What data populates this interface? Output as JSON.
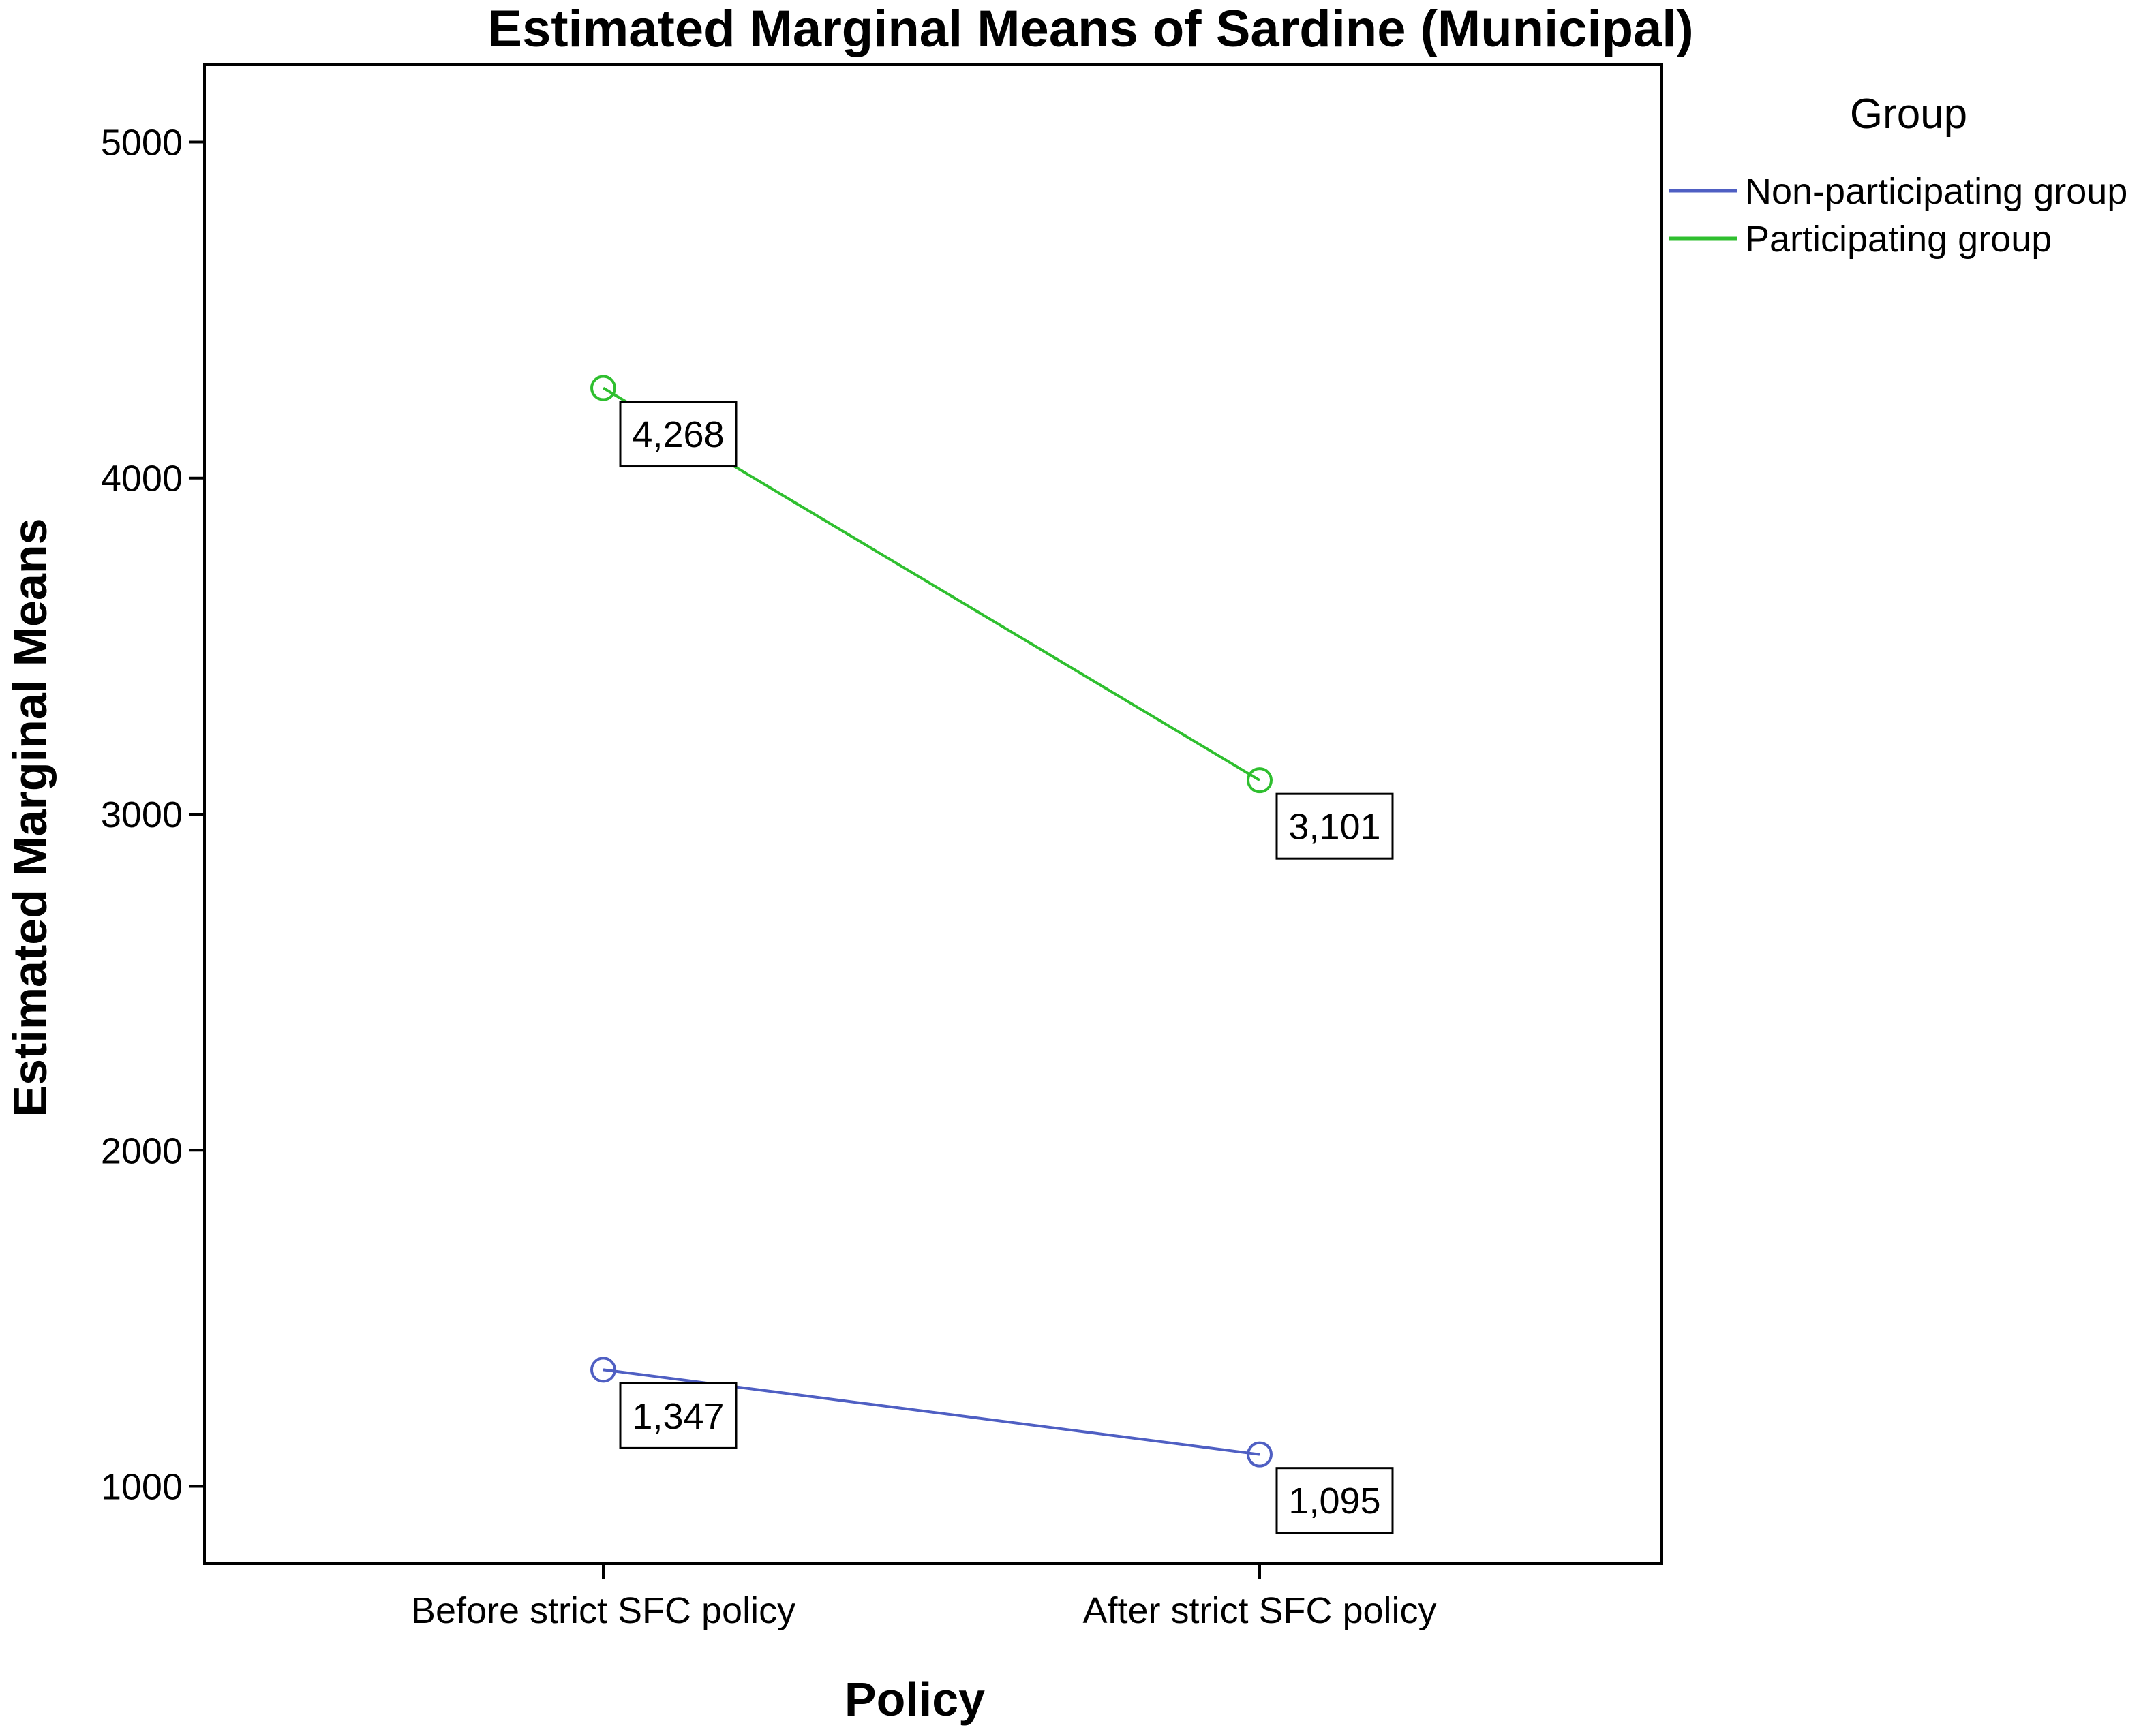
{
  "chart_data": {
    "type": "line",
    "title": "Estimated Marginal Means of Sardine (Municipal)",
    "xlabel": "Policy",
    "ylabel": "Estimated Marginal Means",
    "categories": [
      "Before strict SFC policy",
      "After strict SFC policy"
    ],
    "ylim": [
      770,
      5230
    ],
    "yticks": [
      1000,
      2000,
      3000,
      4000,
      5000
    ],
    "grid": false,
    "legend": {
      "title": "Group",
      "position": "right"
    },
    "series": [
      {
        "name": "Non-participating group",
        "color": "#4f5fc3",
        "values": [
          1347,
          1095
        ],
        "labels": [
          "1,347",
          "1,095"
        ]
      },
      {
        "name": "Participating group",
        "color": "#2fbf2f",
        "values": [
          4268,
          3101
        ],
        "labels": [
          "4,268",
          "3,101"
        ]
      }
    ]
  }
}
